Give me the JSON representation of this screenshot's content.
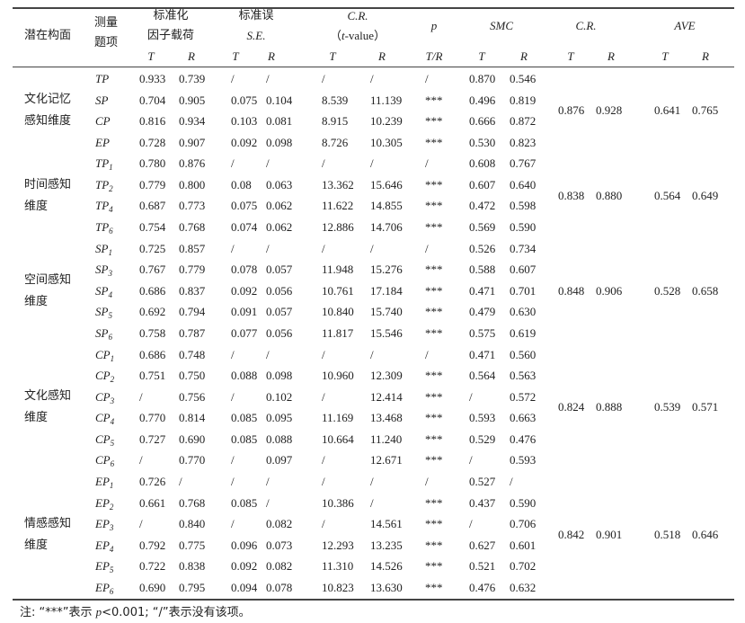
{
  "header": {
    "construct": "潜在构面",
    "item": [
      "测量",
      "题项"
    ],
    "loading": [
      "标准化",
      "因子载荷"
    ],
    "se": [
      "标准误",
      "S.E."
    ],
    "cr": {
      "line1": "C.R.",
      "pre": "（",
      "italic": "t",
      "post": "-value）"
    },
    "p": "p",
    "smc": "SMC",
    "cr2": "C.R.",
    "ave": "AVE",
    "sub": [
      "T",
      "R",
      "T",
      "R",
      "T",
      "R",
      "T/R",
      "T",
      "R",
      "T",
      "R",
      "T",
      "R"
    ]
  },
  "groups": [
    {
      "label": "文化记忆感知维度",
      "cr": [
        "0.876",
        "0.928"
      ],
      "ave": [
        "0.641",
        "0.765"
      ],
      "rows": [
        {
          "item": "TP",
          "sub": "",
          "cells": [
            "0.933",
            "0.739",
            "/",
            "/",
            "/",
            "/",
            "/",
            "0.870",
            "0.546"
          ]
        },
        {
          "item": "SP",
          "sub": "",
          "cells": [
            "0.704",
            "0.905",
            "0.075",
            "0.104",
            "8.539",
            "11.139",
            "***",
            "0.496",
            "0.819"
          ]
        },
        {
          "item": "CP",
          "sub": "",
          "cells": [
            "0.816",
            "0.934",
            "0.103",
            "0.081",
            "8.915",
            "10.239",
            "***",
            "0.666",
            "0.872"
          ]
        },
        {
          "item": "EP",
          "sub": "",
          "cells": [
            "0.728",
            "0.907",
            "0.092",
            "0.098",
            "8.726",
            "10.305",
            "***",
            "0.530",
            "0.823"
          ]
        }
      ]
    },
    {
      "label": "时间感知维度",
      "cr": [
        "0.838",
        "0.880"
      ],
      "ave": [
        "0.564",
        "0.649"
      ],
      "rows": [
        {
          "item": "TP",
          "sub": "1",
          "cells": [
            "0.780",
            "0.876",
            "/",
            "/",
            "/",
            "/",
            "/",
            "0.608",
            "0.767"
          ]
        },
        {
          "item": "TP",
          "sub": "2",
          "cells": [
            "0.779",
            "0.800",
            "0.08",
            "0.063",
            "13.362",
            "15.646",
            "***",
            "0.607",
            "0.640"
          ]
        },
        {
          "item": "TP",
          "sub": "4",
          "cells": [
            "0.687",
            "0.773",
            "0.075",
            "0.062",
            "11.622",
            "14.855",
            "***",
            "0.472",
            "0.598"
          ]
        },
        {
          "item": "TP",
          "sub": "6",
          "cells": [
            "0.754",
            "0.768",
            "0.074",
            "0.062",
            "12.886",
            "14.706",
            "***",
            "0.569",
            "0.590"
          ]
        }
      ]
    },
    {
      "label": "空间感知维度",
      "cr": [
        "0.848",
        "0.906"
      ],
      "ave": [
        "0.528",
        "0.658"
      ],
      "rows": [
        {
          "item": "SP",
          "sub": "1",
          "cells": [
            "0.725",
            "0.857",
            "/",
            "/",
            "/",
            "/",
            "/",
            "0.526",
            "0.734"
          ]
        },
        {
          "item": "SP",
          "sub": "3",
          "cells": [
            "0.767",
            "0.779",
            "0.078",
            "0.057",
            "11.948",
            "15.276",
            "***",
            "0.588",
            "0.607"
          ]
        },
        {
          "item": "SP",
          "sub": "4",
          "cells": [
            "0.686",
            "0.837",
            "0.092",
            "0.056",
            "10.761",
            "17.184",
            "***",
            "0.471",
            "0.701"
          ]
        },
        {
          "item": "SP",
          "sub": "5",
          "cells": [
            "0.692",
            "0.794",
            "0.091",
            "0.057",
            "10.840",
            "15.740",
            "***",
            "0.479",
            "0.630"
          ]
        },
        {
          "item": "SP",
          "sub": "6",
          "cells": [
            "0.758",
            "0.787",
            "0.077",
            "0.056",
            "11.817",
            "15.546",
            "***",
            "0.575",
            "0.619"
          ]
        }
      ]
    },
    {
      "label": "文化感知维度",
      "cr": [
        "0.824",
        "0.888"
      ],
      "ave": [
        "0.539",
        "0.571"
      ],
      "rows": [
        {
          "item": "CP",
          "sub": "1",
          "cells": [
            "0.686",
            "0.748",
            "/",
            "/",
            "/",
            "/",
            "/",
            "0.471",
            "0.560"
          ]
        },
        {
          "item": "CP",
          "sub": "2",
          "cells": [
            "0.751",
            "0.750",
            "0.088",
            "0.098",
            "10.960",
            "12.309",
            "***",
            "0.564",
            "0.563"
          ]
        },
        {
          "item": "CP",
          "sub": "3",
          "cells": [
            "/",
            "0.756",
            "/",
            "0.102",
            "/",
            "12.414",
            "***",
            "/",
            "0.572"
          ]
        },
        {
          "item": "CP",
          "sub": "4",
          "cells": [
            "0.770",
            "0.814",
            "0.085",
            "0.095",
            "11.169",
            "13.468",
            "***",
            "0.593",
            "0.663"
          ]
        },
        {
          "item": "CP",
          "sub": "5",
          "cells": [
            "0.727",
            "0.690",
            "0.085",
            "0.088",
            "10.664",
            "11.240",
            "***",
            "0.529",
            "0.476"
          ]
        },
        {
          "item": "CP",
          "sub": "6",
          "cells": [
            "/",
            "0.770",
            "/",
            "0.097",
            "/",
            "12.671",
            "***",
            "/",
            "0.593"
          ]
        }
      ]
    },
    {
      "label": "情感感知维度",
      "cr": [
        "0.842",
        "0.901"
      ],
      "ave": [
        "0.518",
        "0.646"
      ],
      "rows": [
        {
          "item": "EP",
          "sub": "1",
          "cells": [
            "0.726",
            "/",
            "/",
            "/",
            "/",
            "/",
            "/",
            "0.527",
            "/"
          ]
        },
        {
          "item": "EP",
          "sub": "2",
          "cells": [
            "0.661",
            "0.768",
            "0.085",
            "/",
            "10.386",
            "/",
            "***",
            "0.437",
            "0.590"
          ]
        },
        {
          "item": "EP",
          "sub": "3",
          "cells": [
            "/",
            "0.840",
            "/",
            "0.082",
            "/",
            "14.561",
            "***",
            "/",
            "0.706"
          ]
        },
        {
          "item": "EP",
          "sub": "4",
          "cells": [
            "0.792",
            "0.775",
            "0.096",
            "0.073",
            "12.293",
            "13.235",
            "***",
            "0.627",
            "0.601"
          ]
        },
        {
          "item": "EP",
          "sub": "5",
          "cells": [
            "0.722",
            "0.838",
            "0.092",
            "0.082",
            "11.310",
            "14.526",
            "***",
            "0.521",
            "0.702"
          ]
        },
        {
          "item": "EP",
          "sub": "6",
          "cells": [
            "0.690",
            "0.795",
            "0.094",
            "0.078",
            "10.823",
            "13.630",
            "***",
            "0.476",
            "0.632"
          ]
        }
      ]
    }
  ],
  "note": {
    "pre": "注: “***”表示 ",
    "italic": "p",
    "post": "<0.001; “/”表示没有该项。"
  }
}
